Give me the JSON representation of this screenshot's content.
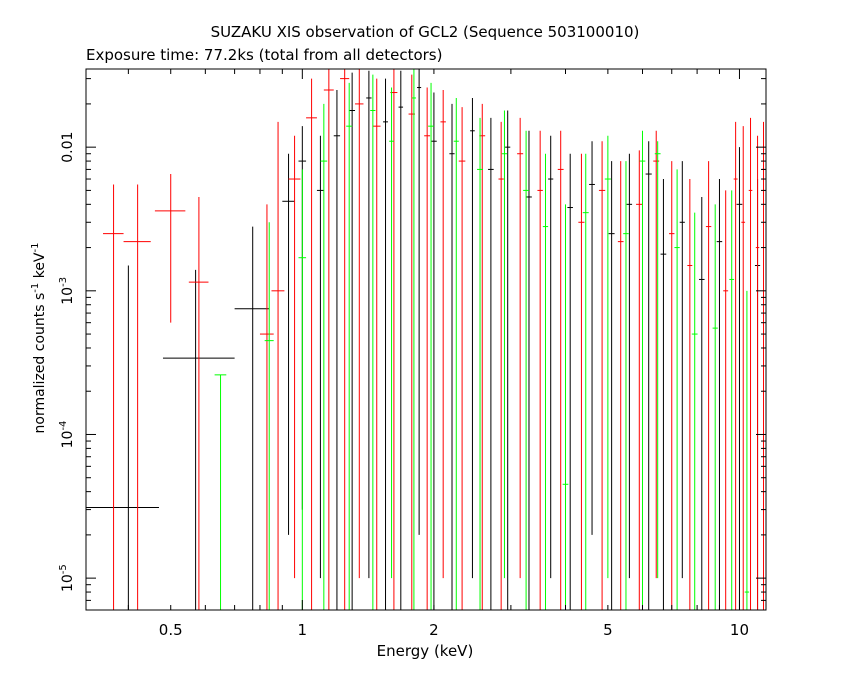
{
  "chart_data": {
    "type": "scatter",
    "title": "SUZAKU XIS observation of GCL2 (Sequence 503100010)",
    "subtitle": "Exposure time: 77.2ks (total from all detectors)",
    "xlabel": "Energy (keV)",
    "ylabel_parts": [
      "normalized counts s",
      "-1",
      " keV",
      "-1"
    ],
    "x_scale": "log",
    "y_scale": "log",
    "xlim": [
      0.32,
      11.5
    ],
    "ylim": [
      6e-06,
      0.035
    ],
    "x_ticks": [
      {
        "value": 0.5,
        "label": "0.5"
      },
      {
        "value": 1,
        "label": "1"
      },
      {
        "value": 2,
        "label": "2"
      },
      {
        "value": 5,
        "label": "5"
      },
      {
        "value": 10,
        "label": "10"
      }
    ],
    "y_ticks": [
      {
        "value": 1e-05,
        "base": "10",
        "exp": "-5"
      },
      {
        "value": 0.0001,
        "base": "10",
        "exp": "-4"
      },
      {
        "value": 0.001,
        "base": "10",
        "exp": "-3"
      },
      {
        "value": 0.01,
        "base": "0.01",
        "exp": ""
      }
    ],
    "colors": {
      "XIS0": "#000000",
      "XIS1": "#ff0000",
      "XIS3": "#00ff00"
    },
    "series": [
      {
        "color": "#000000",
        "points": [
          {
            "x": 0.4,
            "xlo": 0.32,
            "xhi": 0.47,
            "y": 3.1e-05,
            "ylo": 6e-06,
            "yhi": 0.0015
          },
          {
            "x": 0.57,
            "xlo": 0.48,
            "xhi": 0.7,
            "y": 0.00034,
            "ylo": 6e-06,
            "yhi": 0.0014
          },
          {
            "x": 0.77,
            "xlo": 0.7,
            "xhi": 0.84,
            "y": 0.00075,
            "ylo": 6e-06,
            "yhi": 0.0028
          },
          {
            "x": 0.93,
            "xlo": 0.9,
            "xhi": 0.96,
            "y": 0.0042,
            "ylo": 2e-05,
            "yhi": 0.009
          },
          {
            "x": 1.0,
            "xlo": 0.98,
            "xhi": 1.02,
            "y": 0.008,
            "ylo": 3e-05,
            "yhi": 0.014
          },
          {
            "x": 1.1,
            "xlo": 1.08,
            "xhi": 1.12,
            "y": 0.005,
            "ylo": 1e-05,
            "yhi": 0.012
          },
          {
            "x": 1.2,
            "xlo": 1.18,
            "xhi": 1.22,
            "y": 0.012,
            "ylo": 6e-06,
            "yhi": 0.025
          },
          {
            "x": 1.3,
            "xlo": 1.28,
            "xhi": 1.32,
            "y": 0.018,
            "ylo": 6e-06,
            "yhi": 0.033
          },
          {
            "x": 1.42,
            "xlo": 1.4,
            "xhi": 1.44,
            "y": 0.022,
            "ylo": 1e-05,
            "yhi": 0.034
          },
          {
            "x": 1.55,
            "xlo": 1.53,
            "xhi": 1.57,
            "y": 0.015,
            "ylo": 6e-06,
            "yhi": 0.03
          },
          {
            "x": 1.68,
            "xlo": 1.66,
            "xhi": 1.7,
            "y": 0.019,
            "ylo": 6e-06,
            "yhi": 0.034
          },
          {
            "x": 1.85,
            "xlo": 1.83,
            "xhi": 1.87,
            "y": 0.026,
            "ylo": 2e-05,
            "yhi": 0.035
          },
          {
            "x": 2.0,
            "xlo": 1.97,
            "xhi": 2.03,
            "y": 0.011,
            "ylo": 6e-06,
            "yhi": 0.024
          },
          {
            "x": 2.2,
            "xlo": 2.17,
            "xhi": 2.23,
            "y": 0.009,
            "ylo": 6e-06,
            "yhi": 0.02
          },
          {
            "x": 2.45,
            "xlo": 2.42,
            "xhi": 2.48,
            "y": 0.013,
            "ylo": 1e-05,
            "yhi": 0.022
          },
          {
            "x": 2.7,
            "xlo": 2.66,
            "xhi": 2.74,
            "y": 0.007,
            "ylo": 6e-06,
            "yhi": 0.016
          },
          {
            "x": 2.95,
            "xlo": 2.91,
            "xhi": 2.99,
            "y": 0.01,
            "ylo": 6e-06,
            "yhi": 0.018
          },
          {
            "x": 3.3,
            "xlo": 3.25,
            "xhi": 3.35,
            "y": 0.0045,
            "ylo": 6e-06,
            "yhi": 0.013
          },
          {
            "x": 3.7,
            "xlo": 3.65,
            "xhi": 3.75,
            "y": 0.006,
            "ylo": 1e-05,
            "yhi": 0.012
          },
          {
            "x": 4.1,
            "xlo": 4.04,
            "xhi": 4.16,
            "y": 0.0038,
            "ylo": 6e-06,
            "yhi": 0.009
          },
          {
            "x": 4.6,
            "xlo": 4.53,
            "xhi": 4.67,
            "y": 0.0055,
            "ylo": 2e-05,
            "yhi": 0.011
          },
          {
            "x": 5.1,
            "xlo": 5.02,
            "xhi": 5.18,
            "y": 0.0025,
            "ylo": 6e-06,
            "yhi": 0.008
          },
          {
            "x": 5.6,
            "xlo": 5.52,
            "xhi": 5.68,
            "y": 0.004,
            "ylo": 1e-05,
            "yhi": 0.009
          },
          {
            "x": 6.2,
            "xlo": 6.1,
            "xhi": 6.3,
            "y": 0.0065,
            "ylo": 6e-06,
            "yhi": 0.011
          },
          {
            "x": 6.7,
            "xlo": 6.6,
            "xhi": 6.8,
            "y": 0.0018,
            "ylo": 6e-06,
            "yhi": 0.006
          },
          {
            "x": 7.4,
            "xlo": 7.3,
            "xhi": 7.5,
            "y": 0.003,
            "ylo": 1e-05,
            "yhi": 0.008
          },
          {
            "x": 8.2,
            "xlo": 8.08,
            "xhi": 8.32,
            "y": 0.0012,
            "ylo": 6e-06,
            "yhi": 0.0045
          },
          {
            "x": 9.0,
            "xlo": 8.87,
            "xhi": 9.13,
            "y": 0.0022,
            "ylo": 6e-06,
            "yhi": 0.006
          },
          {
            "x": 10.0,
            "xlo": 9.85,
            "xhi": 10.15,
            "y": 0.004,
            "ylo": 6e-06,
            "yhi": 0.01
          },
          {
            "x": 11.0,
            "xlo": 10.85,
            "xhi": 11.15,
            "y": 0.0015,
            "ylo": 6e-06,
            "yhi": 0.006
          }
        ]
      },
      {
        "color": "#ff0000",
        "points": [
          {
            "x": 0.37,
            "xlo": 0.35,
            "xhi": 0.39,
            "y": 0.0025,
            "ylo": 6e-06,
            "yhi": 0.0055
          },
          {
            "x": 0.42,
            "xlo": 0.39,
            "xhi": 0.45,
            "y": 0.0022,
            "ylo": 6e-06,
            "yhi": 0.0055
          },
          {
            "x": 0.5,
            "xlo": 0.46,
            "xhi": 0.54,
            "y": 0.0036,
            "ylo": 0.0006,
            "yhi": 0.0065
          },
          {
            "x": 0.58,
            "xlo": 0.55,
            "xhi": 0.61,
            "y": 0.00115,
            "ylo": 6e-06,
            "yhi": 0.0045
          },
          {
            "x": 0.83,
            "xlo": 0.8,
            "xhi": 0.86,
            "y": 0.0005,
            "ylo": 6e-06,
            "yhi": 0.004
          },
          {
            "x": 0.88,
            "xlo": 0.85,
            "xhi": 0.91,
            "y": 0.001,
            "ylo": 6e-06,
            "yhi": 0.015
          },
          {
            "x": 0.96,
            "xlo": 0.93,
            "xhi": 0.99,
            "y": 0.006,
            "ylo": 1e-05,
            "yhi": 0.012
          },
          {
            "x": 1.05,
            "xlo": 1.02,
            "xhi": 1.08,
            "y": 0.016,
            "ylo": 6e-06,
            "yhi": 0.03
          },
          {
            "x": 1.15,
            "xlo": 1.12,
            "xhi": 1.18,
            "y": 0.025,
            "ylo": 6e-06,
            "yhi": 0.035
          },
          {
            "x": 1.25,
            "xlo": 1.22,
            "xhi": 1.28,
            "y": 0.03,
            "ylo": 6e-06,
            "yhi": 0.035
          },
          {
            "x": 1.35,
            "xlo": 1.32,
            "xhi": 1.38,
            "y": 0.02,
            "ylo": 1e-05,
            "yhi": 0.035
          },
          {
            "x": 1.48,
            "xlo": 1.45,
            "xhi": 1.51,
            "y": 0.014,
            "ylo": 6e-06,
            "yhi": 0.03
          },
          {
            "x": 1.62,
            "xlo": 1.59,
            "xhi": 1.65,
            "y": 0.024,
            "ylo": 6e-06,
            "yhi": 0.035
          },
          {
            "x": 1.78,
            "xlo": 1.75,
            "xhi": 1.81,
            "y": 0.017,
            "ylo": 6e-06,
            "yhi": 0.032
          },
          {
            "x": 1.93,
            "xlo": 1.9,
            "xhi": 1.96,
            "y": 0.012,
            "ylo": 6e-06,
            "yhi": 0.026
          },
          {
            "x": 2.1,
            "xlo": 2.07,
            "xhi": 2.13,
            "y": 0.015,
            "ylo": 1e-05,
            "yhi": 0.025
          },
          {
            "x": 2.32,
            "xlo": 2.28,
            "xhi": 2.36,
            "y": 0.008,
            "ylo": 6e-06,
            "yhi": 0.019
          },
          {
            "x": 2.58,
            "xlo": 2.54,
            "xhi": 2.62,
            "y": 0.012,
            "ylo": 6e-06,
            "yhi": 0.02
          },
          {
            "x": 2.85,
            "xlo": 2.81,
            "xhi": 2.89,
            "y": 0.006,
            "ylo": 6e-06,
            "yhi": 0.015
          },
          {
            "x": 3.15,
            "xlo": 3.1,
            "xhi": 3.2,
            "y": 0.009,
            "ylo": 1e-05,
            "yhi": 0.016
          },
          {
            "x": 3.5,
            "xlo": 3.45,
            "xhi": 3.55,
            "y": 0.005,
            "ylo": 6e-06,
            "yhi": 0.013
          },
          {
            "x": 3.9,
            "xlo": 3.84,
            "xhi": 3.96,
            "y": 0.007,
            "ylo": 6e-06,
            "yhi": 0.013
          },
          {
            "x": 4.35,
            "xlo": 4.28,
            "xhi": 4.42,
            "y": 0.003,
            "ylo": 6e-06,
            "yhi": 0.009
          },
          {
            "x": 4.85,
            "xlo": 4.77,
            "xhi": 4.93,
            "y": 0.005,
            "ylo": 6e-06,
            "yhi": 0.011
          },
          {
            "x": 5.35,
            "xlo": 5.27,
            "xhi": 5.43,
            "y": 0.0022,
            "ylo": 6e-06,
            "yhi": 0.008
          },
          {
            "x": 5.9,
            "xlo": 5.8,
            "xhi": 6.0,
            "y": 0.004,
            "ylo": 6e-06,
            "yhi": 0.0095
          },
          {
            "x": 6.45,
            "xlo": 6.35,
            "xhi": 6.55,
            "y": 0.008,
            "ylo": 1e-05,
            "yhi": 0.013
          },
          {
            "x": 7.0,
            "xlo": 6.9,
            "xhi": 7.1,
            "y": 0.0025,
            "ylo": 6e-06,
            "yhi": 0.008
          },
          {
            "x": 7.7,
            "xlo": 7.6,
            "xhi": 7.8,
            "y": 0.0015,
            "ylo": 6e-06,
            "yhi": 0.006
          },
          {
            "x": 8.5,
            "xlo": 8.38,
            "xhi": 8.62,
            "y": 0.0028,
            "ylo": 6e-06,
            "yhi": 0.008
          },
          {
            "x": 9.3,
            "xlo": 9.18,
            "xhi": 9.42,
            "y": 0.001,
            "ylo": 6e-06,
            "yhi": 0.005
          },
          {
            "x": 9.8,
            "xlo": 9.7,
            "xhi": 9.9,
            "y": 0.006,
            "ylo": 6e-06,
            "yhi": 0.015
          },
          {
            "x": 10.2,
            "xlo": 10.1,
            "xhi": 10.3,
            "y": 0.003,
            "ylo": 6e-06,
            "yhi": 0.014
          },
          {
            "x": 10.6,
            "xlo": 10.5,
            "xhi": 10.7,
            "y": 0.005,
            "ylo": 6e-06,
            "yhi": 0.016
          },
          {
            "x": 11.0,
            "xlo": 10.9,
            "xhi": 11.1,
            "y": 0.002,
            "ylo": 6e-06,
            "yhi": 0.012
          },
          {
            "x": 11.35,
            "xlo": 11.25,
            "xhi": 11.45,
            "y": 0.007,
            "ylo": 6e-06,
            "yhi": 0.015
          }
        ]
      },
      {
        "color": "#00ff00",
        "points": [
          {
            "x": 0.65,
            "xlo": 0.63,
            "xhi": 0.67,
            "y": 0.00026,
            "ylo": 6e-06,
            "yhi": 0.00026
          },
          {
            "x": 0.84,
            "xlo": 0.82,
            "xhi": 0.86,
            "y": 0.00045,
            "ylo": 6e-06,
            "yhi": 0.003
          },
          {
            "x": 1.0,
            "xlo": 0.98,
            "xhi": 1.02,
            "y": 0.0017,
            "ylo": 6e-06,
            "yhi": 0.007
          },
          {
            "x": 1.12,
            "xlo": 1.1,
            "xhi": 1.14,
            "y": 0.008,
            "ylo": 6e-06,
            "yhi": 0.02
          },
          {
            "x": 1.28,
            "xlo": 1.26,
            "xhi": 1.3,
            "y": 0.014,
            "ylo": 6e-06,
            "yhi": 0.028
          },
          {
            "x": 1.45,
            "xlo": 1.43,
            "xhi": 1.47,
            "y": 0.018,
            "ylo": 6e-06,
            "yhi": 0.032
          },
          {
            "x": 1.6,
            "xlo": 1.58,
            "xhi": 1.62,
            "y": 0.011,
            "ylo": 1e-05,
            "yhi": 0.026
          },
          {
            "x": 1.8,
            "xlo": 1.78,
            "xhi": 1.82,
            "y": 0.022,
            "ylo": 6e-06,
            "yhi": 0.035
          },
          {
            "x": 1.97,
            "xlo": 1.94,
            "xhi": 2.0,
            "y": 0.014,
            "ylo": 6e-06,
            "yhi": 0.028
          },
          {
            "x": 2.25,
            "xlo": 2.22,
            "xhi": 2.28,
            "y": 0.011,
            "ylo": 6e-06,
            "yhi": 0.022
          },
          {
            "x": 2.55,
            "xlo": 2.51,
            "xhi": 2.59,
            "y": 0.007,
            "ylo": 6e-06,
            "yhi": 0.016
          },
          {
            "x": 2.9,
            "xlo": 2.86,
            "xhi": 2.94,
            "y": 0.009,
            "ylo": 1e-05,
            "yhi": 0.018
          },
          {
            "x": 3.25,
            "xlo": 3.2,
            "xhi": 3.3,
            "y": 0.005,
            "ylo": 6e-06,
            "yhi": 0.013
          },
          {
            "x": 3.6,
            "xlo": 3.55,
            "xhi": 3.65,
            "y": 0.0028,
            "ylo": 6e-06,
            "yhi": 0.009
          },
          {
            "x": 4.0,
            "xlo": 3.94,
            "xhi": 4.06,
            "y": 4.5e-05,
            "ylo": 6e-06,
            "yhi": 0.004
          },
          {
            "x": 4.45,
            "xlo": 4.38,
            "xhi": 4.52,
            "y": 0.0035,
            "ylo": 6e-06,
            "yhi": 0.009
          },
          {
            "x": 5.0,
            "xlo": 4.92,
            "xhi": 5.08,
            "y": 0.006,
            "ylo": 1e-05,
            "yhi": 0.012
          },
          {
            "x": 5.5,
            "xlo": 5.42,
            "xhi": 5.58,
            "y": 0.0025,
            "ylo": 6e-06,
            "yhi": 0.008
          },
          {
            "x": 6.0,
            "xlo": 5.91,
            "xhi": 6.09,
            "y": 0.008,
            "ylo": 6e-06,
            "yhi": 0.013
          },
          {
            "x": 6.5,
            "xlo": 6.4,
            "xhi": 6.6,
            "y": 0.009,
            "ylo": 1e-05,
            "yhi": 0.011
          },
          {
            "x": 7.2,
            "xlo": 7.1,
            "xhi": 7.3,
            "y": 0.002,
            "ylo": 6e-06,
            "yhi": 0.007
          },
          {
            "x": 7.9,
            "xlo": 7.78,
            "xhi": 8.02,
            "y": 0.0005,
            "ylo": 6e-06,
            "yhi": 0.0035
          },
          {
            "x": 8.8,
            "xlo": 8.68,
            "xhi": 8.92,
            "y": 0.00055,
            "ylo": 6e-06,
            "yhi": 0.004
          },
          {
            "x": 9.6,
            "xlo": 9.48,
            "xhi": 9.72,
            "y": 0.0012,
            "ylo": 6e-06,
            "yhi": 0.005
          },
          {
            "x": 10.4,
            "xlo": 10.28,
            "xhi": 10.52,
            "y": 8e-06,
            "ylo": 6e-06,
            "yhi": 0.001
          }
        ]
      }
    ]
  }
}
